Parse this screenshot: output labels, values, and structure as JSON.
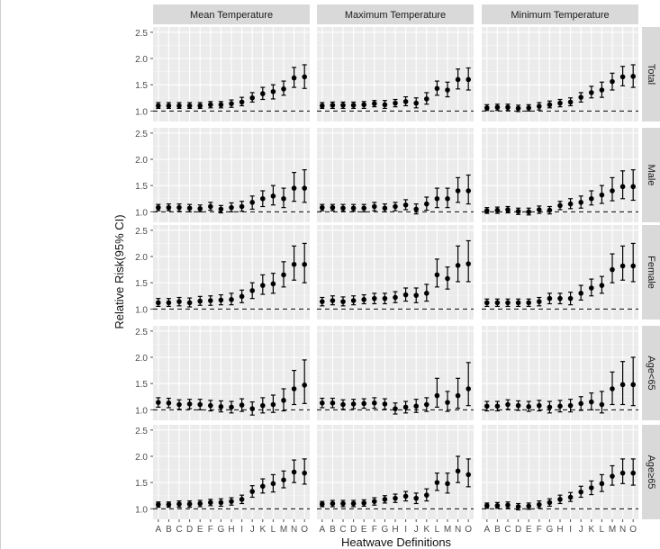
{
  "chart_data": {
    "type": "scatter",
    "subtype": "point-errorbar-facet-grid",
    "xlabel": "Heatwave Definitions",
    "ylabel": "Relative Risk(95% CI)",
    "categories": [
      "A",
      "B",
      "C",
      "D",
      "E",
      "F",
      "G",
      "H",
      "I",
      "J",
      "K",
      "L",
      "M",
      "N",
      "O"
    ],
    "ylim": [
      0.8,
      2.6
    ],
    "yticks": [
      1.0,
      1.5,
      2.0,
      2.5
    ],
    "ytick_labels": [
      "1.0",
      "1.5",
      "2.0",
      "2.5"
    ],
    "reference_line": 1.0,
    "grid": true,
    "columns": [
      "Mean Temperature",
      "Maximum Temperature",
      "Minimum Temperature"
    ],
    "rows": [
      "Total",
      "Male",
      "Female",
      "Age<65",
      "Age≥65"
    ],
    "panels": [
      [
        {
          "values": [
            1.1,
            1.1,
            1.1,
            1.1,
            1.1,
            1.12,
            1.12,
            1.14,
            1.17,
            1.25,
            1.33,
            1.37,
            1.42,
            1.63,
            1.65
          ],
          "lower": [
            1.05,
            1.05,
            1.05,
            1.05,
            1.05,
            1.06,
            1.06,
            1.07,
            1.1,
            1.17,
            1.22,
            1.23,
            1.3,
            1.45,
            1.43
          ],
          "upper": [
            1.16,
            1.16,
            1.16,
            1.16,
            1.16,
            1.18,
            1.18,
            1.21,
            1.26,
            1.35,
            1.45,
            1.5,
            1.57,
            1.83,
            1.88
          ]
        },
        {
          "values": [
            1.1,
            1.11,
            1.11,
            1.11,
            1.12,
            1.14,
            1.12,
            1.15,
            1.18,
            1.15,
            1.23,
            1.43,
            1.4,
            1.6,
            1.6
          ],
          "lower": [
            1.05,
            1.05,
            1.05,
            1.05,
            1.05,
            1.08,
            1.05,
            1.08,
            1.1,
            1.06,
            1.13,
            1.3,
            1.27,
            1.42,
            1.4
          ],
          "upper": [
            1.16,
            1.17,
            1.17,
            1.17,
            1.18,
            1.2,
            1.2,
            1.22,
            1.27,
            1.25,
            1.35,
            1.57,
            1.55,
            1.8,
            1.82
          ]
        },
        {
          "values": [
            1.06,
            1.07,
            1.07,
            1.05,
            1.06,
            1.09,
            1.12,
            1.15,
            1.17,
            1.26,
            1.35,
            1.4,
            1.56,
            1.65,
            1.66
          ],
          "lower": [
            1.01,
            1.01,
            1.01,
            0.99,
            1.0,
            1.02,
            1.06,
            1.08,
            1.1,
            1.17,
            1.25,
            1.26,
            1.4,
            1.48,
            1.45
          ],
          "upper": [
            1.12,
            1.13,
            1.13,
            1.11,
            1.12,
            1.16,
            1.19,
            1.22,
            1.25,
            1.35,
            1.47,
            1.55,
            1.72,
            1.85,
            1.88
          ]
        }
      ],
      [
        {
          "values": [
            1.08,
            1.08,
            1.08,
            1.07,
            1.06,
            1.1,
            1.05,
            1.08,
            1.1,
            1.18,
            1.25,
            1.3,
            1.25,
            1.45,
            1.45
          ],
          "lower": [
            1.02,
            1.02,
            1.01,
            1.0,
            1.0,
            1.03,
            0.98,
            1.0,
            1.01,
            1.05,
            1.1,
            1.13,
            1.08,
            1.2,
            1.18
          ],
          "upper": [
            1.14,
            1.15,
            1.15,
            1.14,
            1.13,
            1.18,
            1.12,
            1.17,
            1.2,
            1.3,
            1.4,
            1.5,
            1.45,
            1.75,
            1.8
          ]
        },
        {
          "values": [
            1.08,
            1.08,
            1.07,
            1.07,
            1.07,
            1.1,
            1.07,
            1.1,
            1.13,
            1.05,
            1.15,
            1.25,
            1.25,
            1.4,
            1.4
          ],
          "lower": [
            1.02,
            1.02,
            1.01,
            1.01,
            1.0,
            1.02,
            1.0,
            1.02,
            1.04,
            0.96,
            1.03,
            1.08,
            1.08,
            1.18,
            1.15
          ],
          "upper": [
            1.14,
            1.14,
            1.14,
            1.14,
            1.14,
            1.18,
            1.15,
            1.18,
            1.23,
            1.15,
            1.28,
            1.45,
            1.45,
            1.65,
            1.7
          ]
        },
        {
          "values": [
            1.02,
            1.03,
            1.04,
            1.01,
            1.0,
            1.04,
            1.03,
            1.12,
            1.15,
            1.18,
            1.25,
            1.32,
            1.4,
            1.48,
            1.48
          ],
          "lower": [
            0.97,
            0.97,
            0.98,
            0.95,
            0.94,
            0.97,
            0.96,
            1.04,
            1.06,
            1.07,
            1.13,
            1.16,
            1.21,
            1.25,
            1.22
          ],
          "upper": [
            1.08,
            1.09,
            1.1,
            1.07,
            1.07,
            1.11,
            1.1,
            1.2,
            1.25,
            1.3,
            1.4,
            1.5,
            1.65,
            1.78,
            1.8
          ]
        }
      ],
      [
        {
          "values": [
            1.12,
            1.12,
            1.14,
            1.12,
            1.15,
            1.16,
            1.17,
            1.18,
            1.24,
            1.35,
            1.45,
            1.48,
            1.65,
            1.85,
            1.85
          ],
          "lower": [
            1.05,
            1.05,
            1.06,
            1.04,
            1.07,
            1.07,
            1.08,
            1.08,
            1.12,
            1.2,
            1.28,
            1.3,
            1.42,
            1.55,
            1.5
          ],
          "upper": [
            1.2,
            1.2,
            1.22,
            1.21,
            1.24,
            1.25,
            1.27,
            1.3,
            1.36,
            1.5,
            1.65,
            1.68,
            1.9,
            2.2,
            2.25
          ]
        },
        {
          "values": [
            1.14,
            1.16,
            1.14,
            1.16,
            1.18,
            1.2,
            1.2,
            1.22,
            1.27,
            1.26,
            1.3,
            1.65,
            1.58,
            1.83,
            1.86
          ],
          "lower": [
            1.06,
            1.08,
            1.06,
            1.08,
            1.1,
            1.1,
            1.1,
            1.12,
            1.15,
            1.12,
            1.15,
            1.42,
            1.38,
            1.52,
            1.52
          ],
          "upper": [
            1.22,
            1.25,
            1.23,
            1.25,
            1.27,
            1.3,
            1.3,
            1.33,
            1.4,
            1.4,
            1.47,
            1.95,
            1.8,
            2.2,
            2.3
          ]
        },
        {
          "values": [
            1.12,
            1.12,
            1.12,
            1.12,
            1.12,
            1.14,
            1.2,
            1.2,
            1.2,
            1.3,
            1.4,
            1.45,
            1.75,
            1.82,
            1.82
          ],
          "lower": [
            1.05,
            1.05,
            1.05,
            1.05,
            1.05,
            1.06,
            1.1,
            1.1,
            1.08,
            1.17,
            1.25,
            1.3,
            1.5,
            1.55,
            1.52
          ],
          "upper": [
            1.19,
            1.19,
            1.19,
            1.19,
            1.19,
            1.22,
            1.3,
            1.3,
            1.32,
            1.45,
            1.57,
            1.62,
            2.05,
            2.2,
            2.25
          ]
        }
      ],
      [
        {
          "values": [
            1.14,
            1.13,
            1.1,
            1.11,
            1.1,
            1.08,
            1.06,
            1.05,
            1.09,
            1.02,
            1.08,
            1.1,
            1.18,
            1.4,
            1.47
          ],
          "lower": [
            1.05,
            1.04,
            1.01,
            1.02,
            1.0,
            0.98,
            0.96,
            0.94,
            0.97,
            0.9,
            0.94,
            0.95,
            0.98,
            1.1,
            1.12
          ],
          "upper": [
            1.23,
            1.22,
            1.19,
            1.2,
            1.2,
            1.18,
            1.17,
            1.16,
            1.21,
            1.15,
            1.23,
            1.28,
            1.4,
            1.75,
            1.95
          ]
        },
        {
          "values": [
            1.13,
            1.13,
            1.1,
            1.11,
            1.12,
            1.13,
            1.11,
            1.02,
            1.05,
            1.07,
            1.1,
            1.27,
            1.14,
            1.27,
            1.4
          ],
          "lower": [
            1.04,
            1.04,
            1.01,
            1.02,
            1.03,
            1.03,
            1.01,
            0.92,
            0.94,
            0.95,
            0.97,
            1.05,
            0.97,
            1.03,
            1.08
          ],
          "upper": [
            1.22,
            1.22,
            1.19,
            1.2,
            1.21,
            1.23,
            1.21,
            1.13,
            1.16,
            1.2,
            1.23,
            1.6,
            1.35,
            1.6,
            1.9
          ]
        },
        {
          "values": [
            1.07,
            1.07,
            1.1,
            1.08,
            1.06,
            1.08,
            1.05,
            1.07,
            1.08,
            1.12,
            1.15,
            1.1,
            1.4,
            1.48,
            1.48
          ],
          "lower": [
            0.98,
            0.98,
            1.01,
            0.99,
            0.97,
            0.98,
            0.94,
            0.96,
            0.96,
            0.99,
            1.0,
            0.94,
            1.1,
            1.1,
            1.08
          ],
          "upper": [
            1.16,
            1.16,
            1.19,
            1.17,
            1.16,
            1.18,
            1.16,
            1.18,
            1.2,
            1.25,
            1.32,
            1.35,
            1.72,
            1.92,
            2.0
          ]
        }
      ],
      [
        {
          "values": [
            1.08,
            1.08,
            1.09,
            1.09,
            1.1,
            1.12,
            1.12,
            1.14,
            1.18,
            1.33,
            1.43,
            1.48,
            1.55,
            1.7,
            1.68
          ],
          "lower": [
            1.03,
            1.03,
            1.03,
            1.03,
            1.04,
            1.06,
            1.05,
            1.07,
            1.1,
            1.22,
            1.3,
            1.32,
            1.4,
            1.5,
            1.47
          ],
          "upper": [
            1.13,
            1.13,
            1.15,
            1.15,
            1.16,
            1.18,
            1.19,
            1.21,
            1.26,
            1.44,
            1.57,
            1.65,
            1.72,
            1.93,
            1.95
          ]
        },
        {
          "values": [
            1.09,
            1.1,
            1.1,
            1.1,
            1.11,
            1.14,
            1.18,
            1.2,
            1.24,
            1.2,
            1.26,
            1.5,
            1.48,
            1.72,
            1.65
          ],
          "lower": [
            1.04,
            1.04,
            1.04,
            1.04,
            1.05,
            1.07,
            1.11,
            1.12,
            1.15,
            1.1,
            1.15,
            1.35,
            1.3,
            1.5,
            1.42
          ],
          "upper": [
            1.14,
            1.16,
            1.16,
            1.16,
            1.17,
            1.21,
            1.25,
            1.28,
            1.33,
            1.3,
            1.38,
            1.68,
            1.68,
            2.0,
            1.95
          ]
        },
        {
          "values": [
            1.06,
            1.06,
            1.07,
            1.04,
            1.05,
            1.08,
            1.12,
            1.18,
            1.22,
            1.32,
            1.4,
            1.48,
            1.62,
            1.68,
            1.68
          ],
          "lower": [
            1.01,
            1.01,
            1.01,
            0.98,
            0.99,
            1.02,
            1.05,
            1.1,
            1.14,
            1.22,
            1.27,
            1.33,
            1.45,
            1.48,
            1.45
          ],
          "upper": [
            1.11,
            1.12,
            1.13,
            1.1,
            1.11,
            1.15,
            1.19,
            1.26,
            1.31,
            1.43,
            1.53,
            1.65,
            1.82,
            1.95,
            1.95
          ]
        }
      ]
    ]
  }
}
